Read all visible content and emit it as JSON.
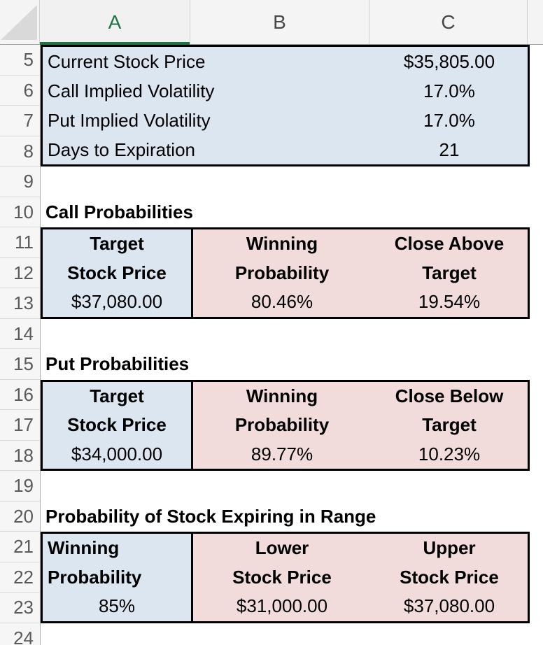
{
  "column_headers": [
    "A",
    "B",
    "C"
  ],
  "row_numbers": [
    5,
    6,
    7,
    8,
    9,
    10,
    11,
    12,
    13,
    14,
    15,
    16,
    17,
    18,
    19,
    20,
    21,
    22,
    23,
    24
  ],
  "selected_column": "A",
  "colors": {
    "selection_green": "#217346",
    "fill_blue": "#dce6f1",
    "fill_rose": "#f2dcdb",
    "border_black": "#000000",
    "header_bg": "#f4f4f4",
    "gridline_gray": "#d9d9d9"
  },
  "inputs": {
    "rows": [
      {
        "label": "Current Stock Price",
        "value": "$35,805.00"
      },
      {
        "label": "Call Implied Volatility",
        "value": "17.0%"
      },
      {
        "label": "Put Implied Volatility",
        "value": "17.0%"
      },
      {
        "label": "Days to Expiration",
        "value": "21"
      }
    ]
  },
  "call": {
    "title": "Call Probabilities",
    "target": {
      "line1": "Target",
      "line2": "Stock Price",
      "value": "$37,080.00"
    },
    "winning": {
      "line1": "Winning",
      "line2": "Probability",
      "value": "80.46%"
    },
    "close": {
      "line1": "Close Above",
      "line2": "Target",
      "value": "19.54%"
    }
  },
  "put": {
    "title": "Put Probabilities",
    "target": {
      "line1": "Target",
      "line2": "Stock Price",
      "value": "$34,000.00"
    },
    "winning": {
      "line1": "Winning",
      "line2": "Probability",
      "value": "89.77%"
    },
    "close": {
      "line1": "Close Below",
      "line2": "Target",
      "value": "10.23%"
    }
  },
  "range": {
    "title": "Probability of Stock Expiring in Range",
    "winning": {
      "line1": "Winning",
      "line2": "Probability",
      "value": "85%"
    },
    "lower": {
      "line1": "Lower",
      "line2": "Stock Price",
      "value": "$31,000.00"
    },
    "upper": {
      "line1": "Upper",
      "line2": "Stock Price",
      "value": "$37,080.00"
    }
  }
}
